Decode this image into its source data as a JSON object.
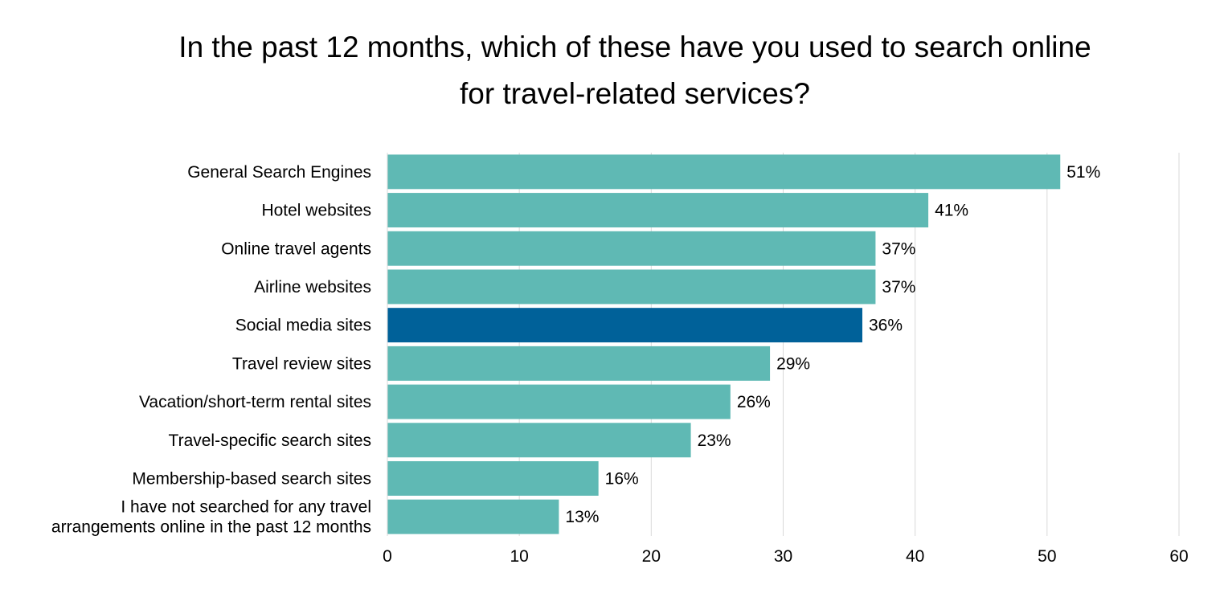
{
  "chart_data": {
    "type": "bar",
    "orientation": "horizontal",
    "title_lines": [
      "In the past 12 months, which of these have you used to search online",
      "for travel-related services?"
    ],
    "categories": [
      [
        "General Search Engines"
      ],
      [
        "Hotel websites"
      ],
      [
        "Online travel agents"
      ],
      [
        "Airline websites"
      ],
      [
        "Social media sites"
      ],
      [
        "Travel review sites"
      ],
      [
        "Vacation/short-term rental sites"
      ],
      [
        "Travel-specific search sites"
      ],
      [
        "Membership-based search sites"
      ],
      [
        "I have not searched for any travel",
        "arrangements online in the past 12 months"
      ]
    ],
    "values": [
      51,
      41,
      37,
      37,
      36,
      29,
      26,
      23,
      16,
      13
    ],
    "data_labels": [
      "51%",
      "41%",
      "37%",
      "37%",
      "36%",
      "29%",
      "26%",
      "23%",
      "16%",
      "13%"
    ],
    "highlight_index": 4,
    "xlim": [
      0,
      60
    ],
    "x_ticks": [
      0,
      10,
      20,
      30,
      40,
      50,
      60
    ],
    "grid": true,
    "colors": {
      "bar": "#5fb9b4",
      "highlight": "#006199",
      "grid": "#d9d9d9",
      "axis": "#000000"
    }
  }
}
